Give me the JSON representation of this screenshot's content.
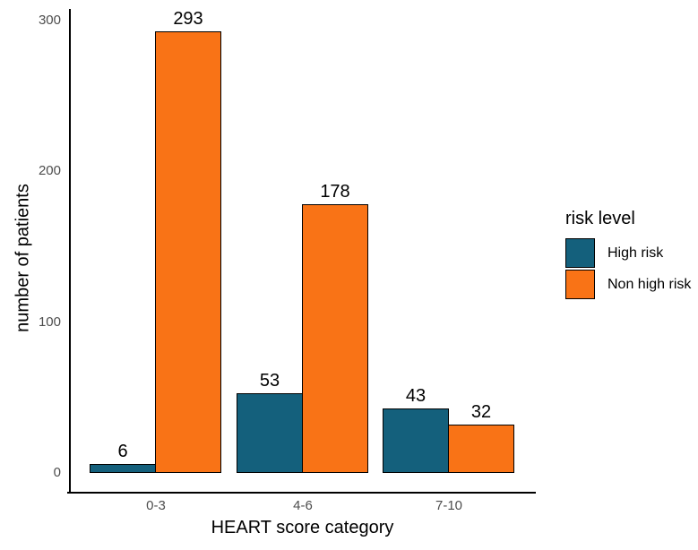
{
  "chart_data": {
    "type": "bar",
    "title": "",
    "categories": [
      "0-3",
      "4-6",
      "7-10"
    ],
    "series": [
      {
        "name": "High risk",
        "color": "#14607c",
        "values": [
          6,
          53,
          43
        ]
      },
      {
        "name": "Non high risk",
        "color": "#f97316",
        "values": [
          293,
          178,
          32
        ]
      }
    ],
    "xlabel": "HEART score category",
    "ylabel": "number of patients",
    "yticks": [
      0,
      100,
      200,
      300
    ],
    "ylim": [
      0,
      307
    ],
    "grid": false,
    "bar_value_labels_shown": true,
    "legend": {
      "title": "risk level",
      "position": "right",
      "entries": [
        "High risk",
        "Non high risk"
      ]
    },
    "colors": {
      "high_risk": "#14607c",
      "non_high_risk": "#f97316",
      "axis_line": "#000000",
      "bar_border": "#000000",
      "tick_label": "#4d4d4d",
      "text": "#000000",
      "background": "#ffffff"
    }
  }
}
